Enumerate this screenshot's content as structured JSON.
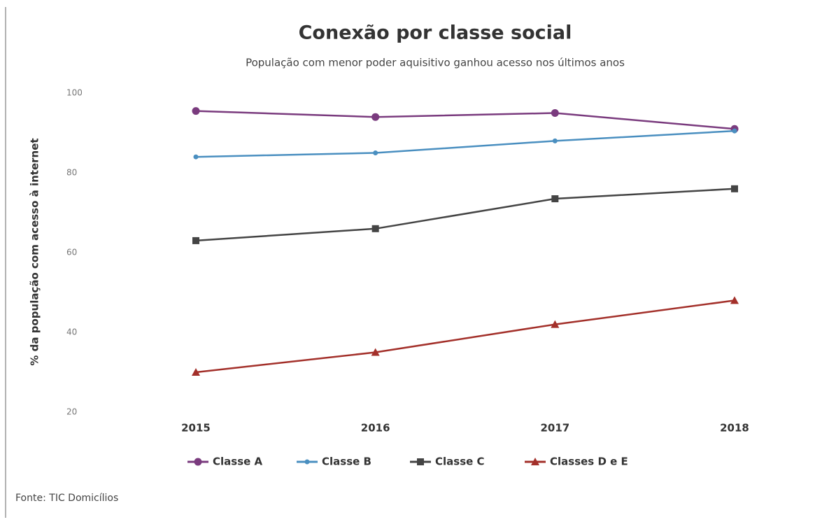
{
  "chart_data": {
    "type": "line",
    "title": "Conexão por classe social",
    "subtitle": "População com menor poder aquisitivo ganhou acesso nos últimos anos",
    "y_label": "% da população com acesso à internet",
    "source": "Fonte: TIC Domicílios",
    "categories": [
      "2015",
      "2016",
      "2017",
      "2018"
    ],
    "series": [
      {
        "name": "Classe A",
        "color": "#7a3b7e",
        "marker": "circle",
        "values": [
          95.5,
          94,
          95,
          91
        ]
      },
      {
        "name": "Classe B",
        "color": "#4a8fc0",
        "marker": "dot",
        "values": [
          84,
          85,
          88,
          90.5
        ]
      },
      {
        "name": "Classe C",
        "color": "#444444",
        "marker": "square",
        "values": [
          63,
          66,
          73.5,
          76
        ]
      },
      {
        "name": "Classes D e E",
        "color": "#a3302a",
        "marker": "triangle",
        "values": [
          30,
          35,
          42,
          48
        ]
      }
    ],
    "ylim": [
      20,
      100
    ],
    "yticks": [
      20,
      40,
      60,
      80,
      100
    ]
  }
}
